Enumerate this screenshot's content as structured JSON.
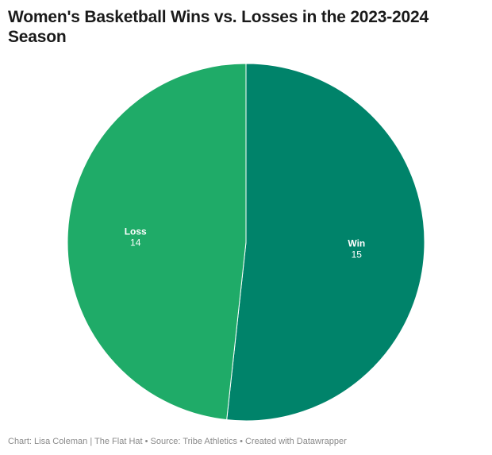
{
  "chart_data": {
    "type": "pie",
    "title": "Women's Basketball Wins vs. Losses in the 2023-2024 Season",
    "slices": [
      {
        "label": "Win",
        "value": 15,
        "color": "#00836a"
      },
      {
        "label": "Loss",
        "value": 14,
        "color": "#1fab68"
      }
    ],
    "start_angle_deg": 0,
    "direction": "clockwise",
    "slice_border_color": "#ffffff"
  },
  "footer": {
    "chart_credit": "Chart: Lisa Coleman | The Flat Hat",
    "source": "Source: Tribe Athletics",
    "tool": "Created with Datawrapper",
    "separator": "•"
  }
}
